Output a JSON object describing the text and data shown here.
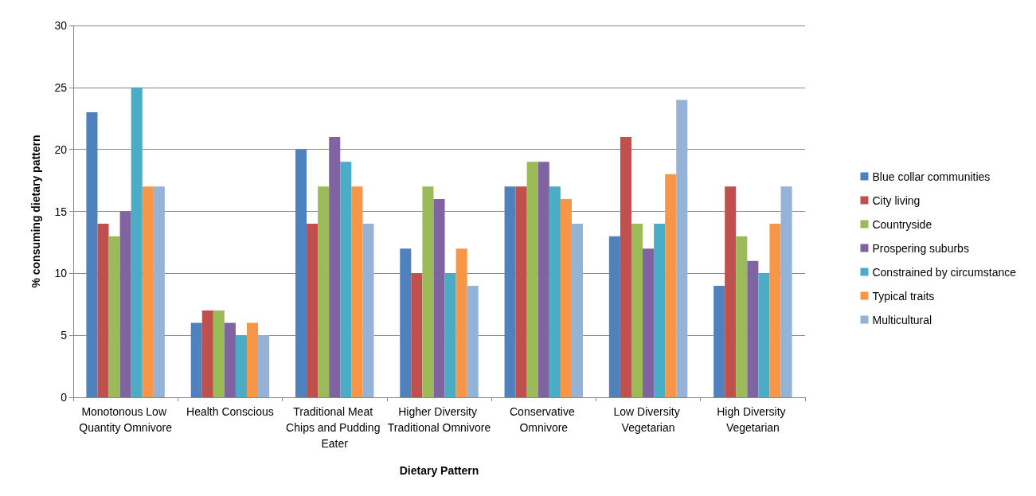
{
  "chart_data": {
    "type": "bar",
    "xlabel": "Dietary Pattern",
    "ylabel": "% consuming dietary pattern",
    "categories": [
      "Monotonous Low Quantity Omnivore",
      "Health Conscious",
      "Traditional Meat Chips and Pudding Eater",
      "Higher Diversity Traditional Omnivore",
      "Conservative Omnivore",
      "Low Diversity Vegetarian",
      "High Diversity Vegetarian"
    ],
    "series": [
      {
        "name": "Blue collar communities",
        "color": "#4f81bd",
        "values": [
          23,
          6,
          20,
          12,
          17,
          13,
          9
        ]
      },
      {
        "name": "City living",
        "color": "#c0504d",
        "values": [
          14,
          7,
          14,
          10,
          17,
          21,
          17
        ]
      },
      {
        "name": "Countryside",
        "color": "#9bbb59",
        "values": [
          13,
          7,
          17,
          17,
          19,
          14,
          13
        ]
      },
      {
        "name": "Prospering suburbs",
        "color": "#8064a2",
        "values": [
          15,
          6,
          21,
          16,
          19,
          12,
          11
        ]
      },
      {
        "name": "Constrained by circumstance",
        "color": "#4bacc6",
        "values": [
          25,
          5,
          19,
          10,
          17,
          14,
          10
        ]
      },
      {
        "name": "Typical traits",
        "color": "#f79646",
        "values": [
          17,
          6,
          17,
          12,
          16,
          18,
          14
        ]
      },
      {
        "name": "Multicultural",
        "color": "#95b3d7",
        "values": [
          17,
          5,
          14,
          9,
          14,
          24,
          17
        ]
      }
    ],
    "ylim": [
      0,
      30
    ],
    "yticks": [
      0,
      5,
      10,
      15,
      20,
      25,
      30
    ],
    "grid": "y",
    "legend": "right"
  }
}
